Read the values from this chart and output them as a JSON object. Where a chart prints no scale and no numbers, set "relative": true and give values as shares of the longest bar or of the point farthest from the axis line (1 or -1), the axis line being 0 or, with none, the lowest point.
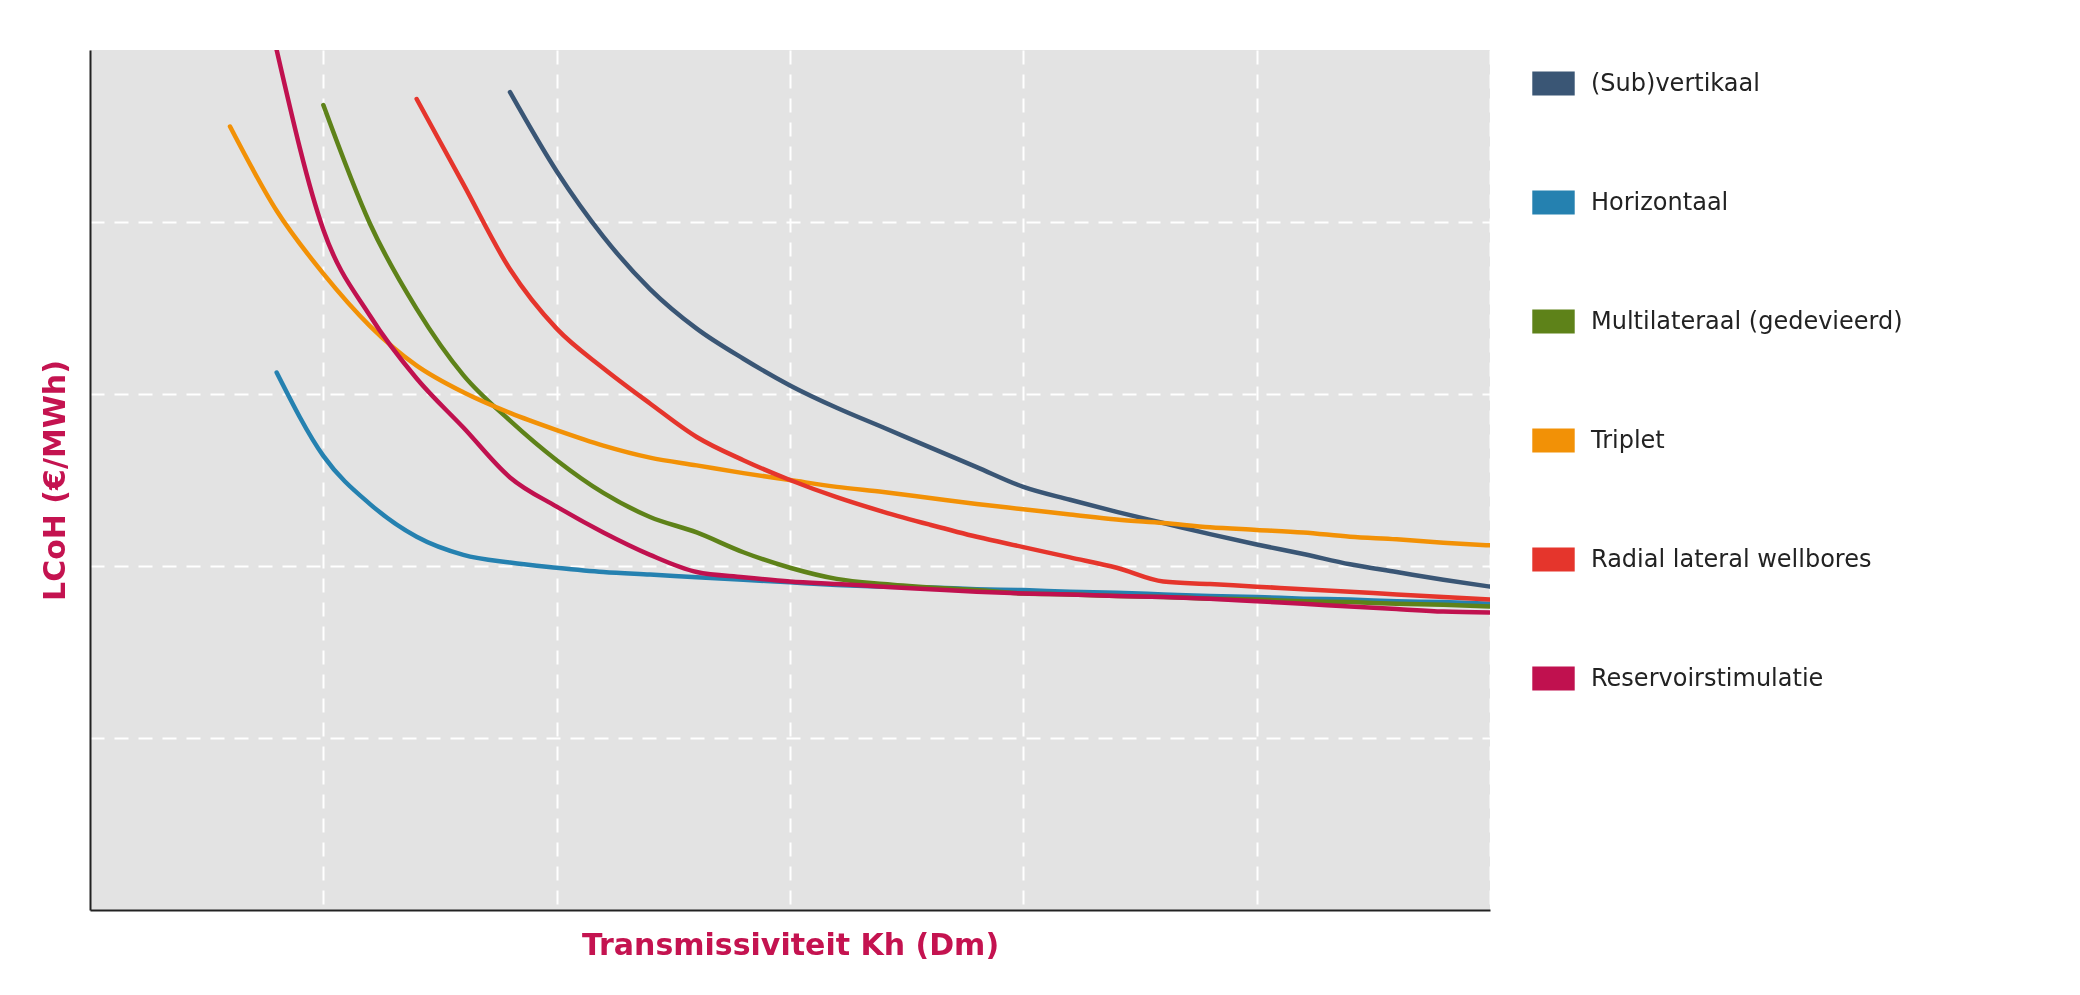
{
  "chart_data": {
    "type": "line",
    "relative": true,
    "xlabel": "Transmissiviteit Kh (Dm)",
    "ylabel": "LCoH (€/MWh)",
    "grid": true,
    "legend": "right",
    "line_style": "solid",
    "marker": "none",
    "categories": [
      null,
      null,
      null,
      null,
      null,
      null,
      null,
      null,
      null,
      null,
      null,
      null,
      null,
      null,
      null,
      null,
      null,
      null,
      null,
      null,
      null,
      null,
      null,
      null,
      null,
      null,
      null,
      null,
      null,
      null,
      null
    ],
    "series": [
      {
        "name": "(Sub)vertikaal",
        "color": "#3a5675",
        "values": [
          null,
          null,
          null,
          null,
          null,
          null,
          null,
          null,
          null,
          0.951,
          0.859,
          0.783,
          0.722,
          0.676,
          0.641,
          0.61,
          0.584,
          0.561,
          0.538,
          0.515,
          0.492,
          0.477,
          0.463,
          0.45,
          0.437,
          0.425,
          0.414,
          0.402,
          0.393,
          0.384,
          0.376
        ]
      },
      {
        "name": "Horizontaal",
        "color": "#2581b0",
        "values": [
          null,
          null,
          null,
          null,
          0.625,
          0.528,
          0.472,
          0.434,
          0.413,
          0.404,
          0.398,
          0.393,
          0.39,
          0.387,
          0.384,
          0.381,
          0.378,
          0.376,
          0.375,
          0.373,
          0.372,
          0.37,
          0.369,
          0.367,
          0.365,
          0.364,
          0.362,
          0.361,
          0.359,
          0.358,
          0.356
        ]
      },
      {
        "name": "Multilateraal (gedevieerd)",
        "color": "#5e8219",
        "values": [
          null,
          null,
          null,
          null,
          null,
          0.936,
          0.798,
          0.699,
          0.622,
          0.569,
          0.523,
          0.485,
          0.457,
          0.439,
          0.416,
          0.398,
          0.385,
          0.379,
          0.375,
          0.372,
          0.368,
          0.367,
          0.365,
          0.364,
          0.362,
          0.361,
          0.359,
          0.358,
          0.356,
          0.355,
          0.353
        ]
      },
      {
        "name": "Triplet",
        "color": "#f29106",
        "values": [
          null,
          null,
          null,
          0.911,
          0.813,
          0.74,
          0.679,
          0.633,
          0.602,
          0.578,
          0.558,
          0.54,
          0.526,
          0.517,
          0.508,
          0.5,
          0.492,
          0.486,
          0.479,
          0.472,
          0.466,
          0.46,
          0.454,
          0.45,
          0.445,
          0.442,
          0.439,
          0.434,
          0.431,
          0.427,
          0.424
        ]
      },
      {
        "name": "Radial lateral wellbores",
        "color": "#e5352c",
        "values": [
          null,
          null,
          null,
          null,
          null,
          null,
          null,
          0.943,
          0.844,
          0.745,
          0.676,
          0.63,
          0.589,
          0.55,
          0.523,
          0.5,
          0.48,
          0.463,
          0.448,
          0.434,
          0.422,
          0.41,
          0.398,
          0.382,
          0.379,
          0.376,
          0.373,
          0.37,
          0.367,
          0.364,
          0.361
        ]
      },
      {
        "name": "Reservoirstimulatie",
        "color": "#c0114f",
        "values": [
          null,
          null,
          null,
          null,
          1.0,
          0.791,
          0.691,
          0.618,
          0.561,
          0.503,
          0.469,
          0.439,
          0.413,
          0.393,
          0.387,
          0.382,
          0.379,
          0.376,
          0.373,
          0.37,
          0.368,
          0.367,
          0.365,
          0.364,
          0.362,
          0.359,
          0.356,
          0.353,
          0.35,
          0.347,
          0.346
        ]
      }
    ]
  }
}
